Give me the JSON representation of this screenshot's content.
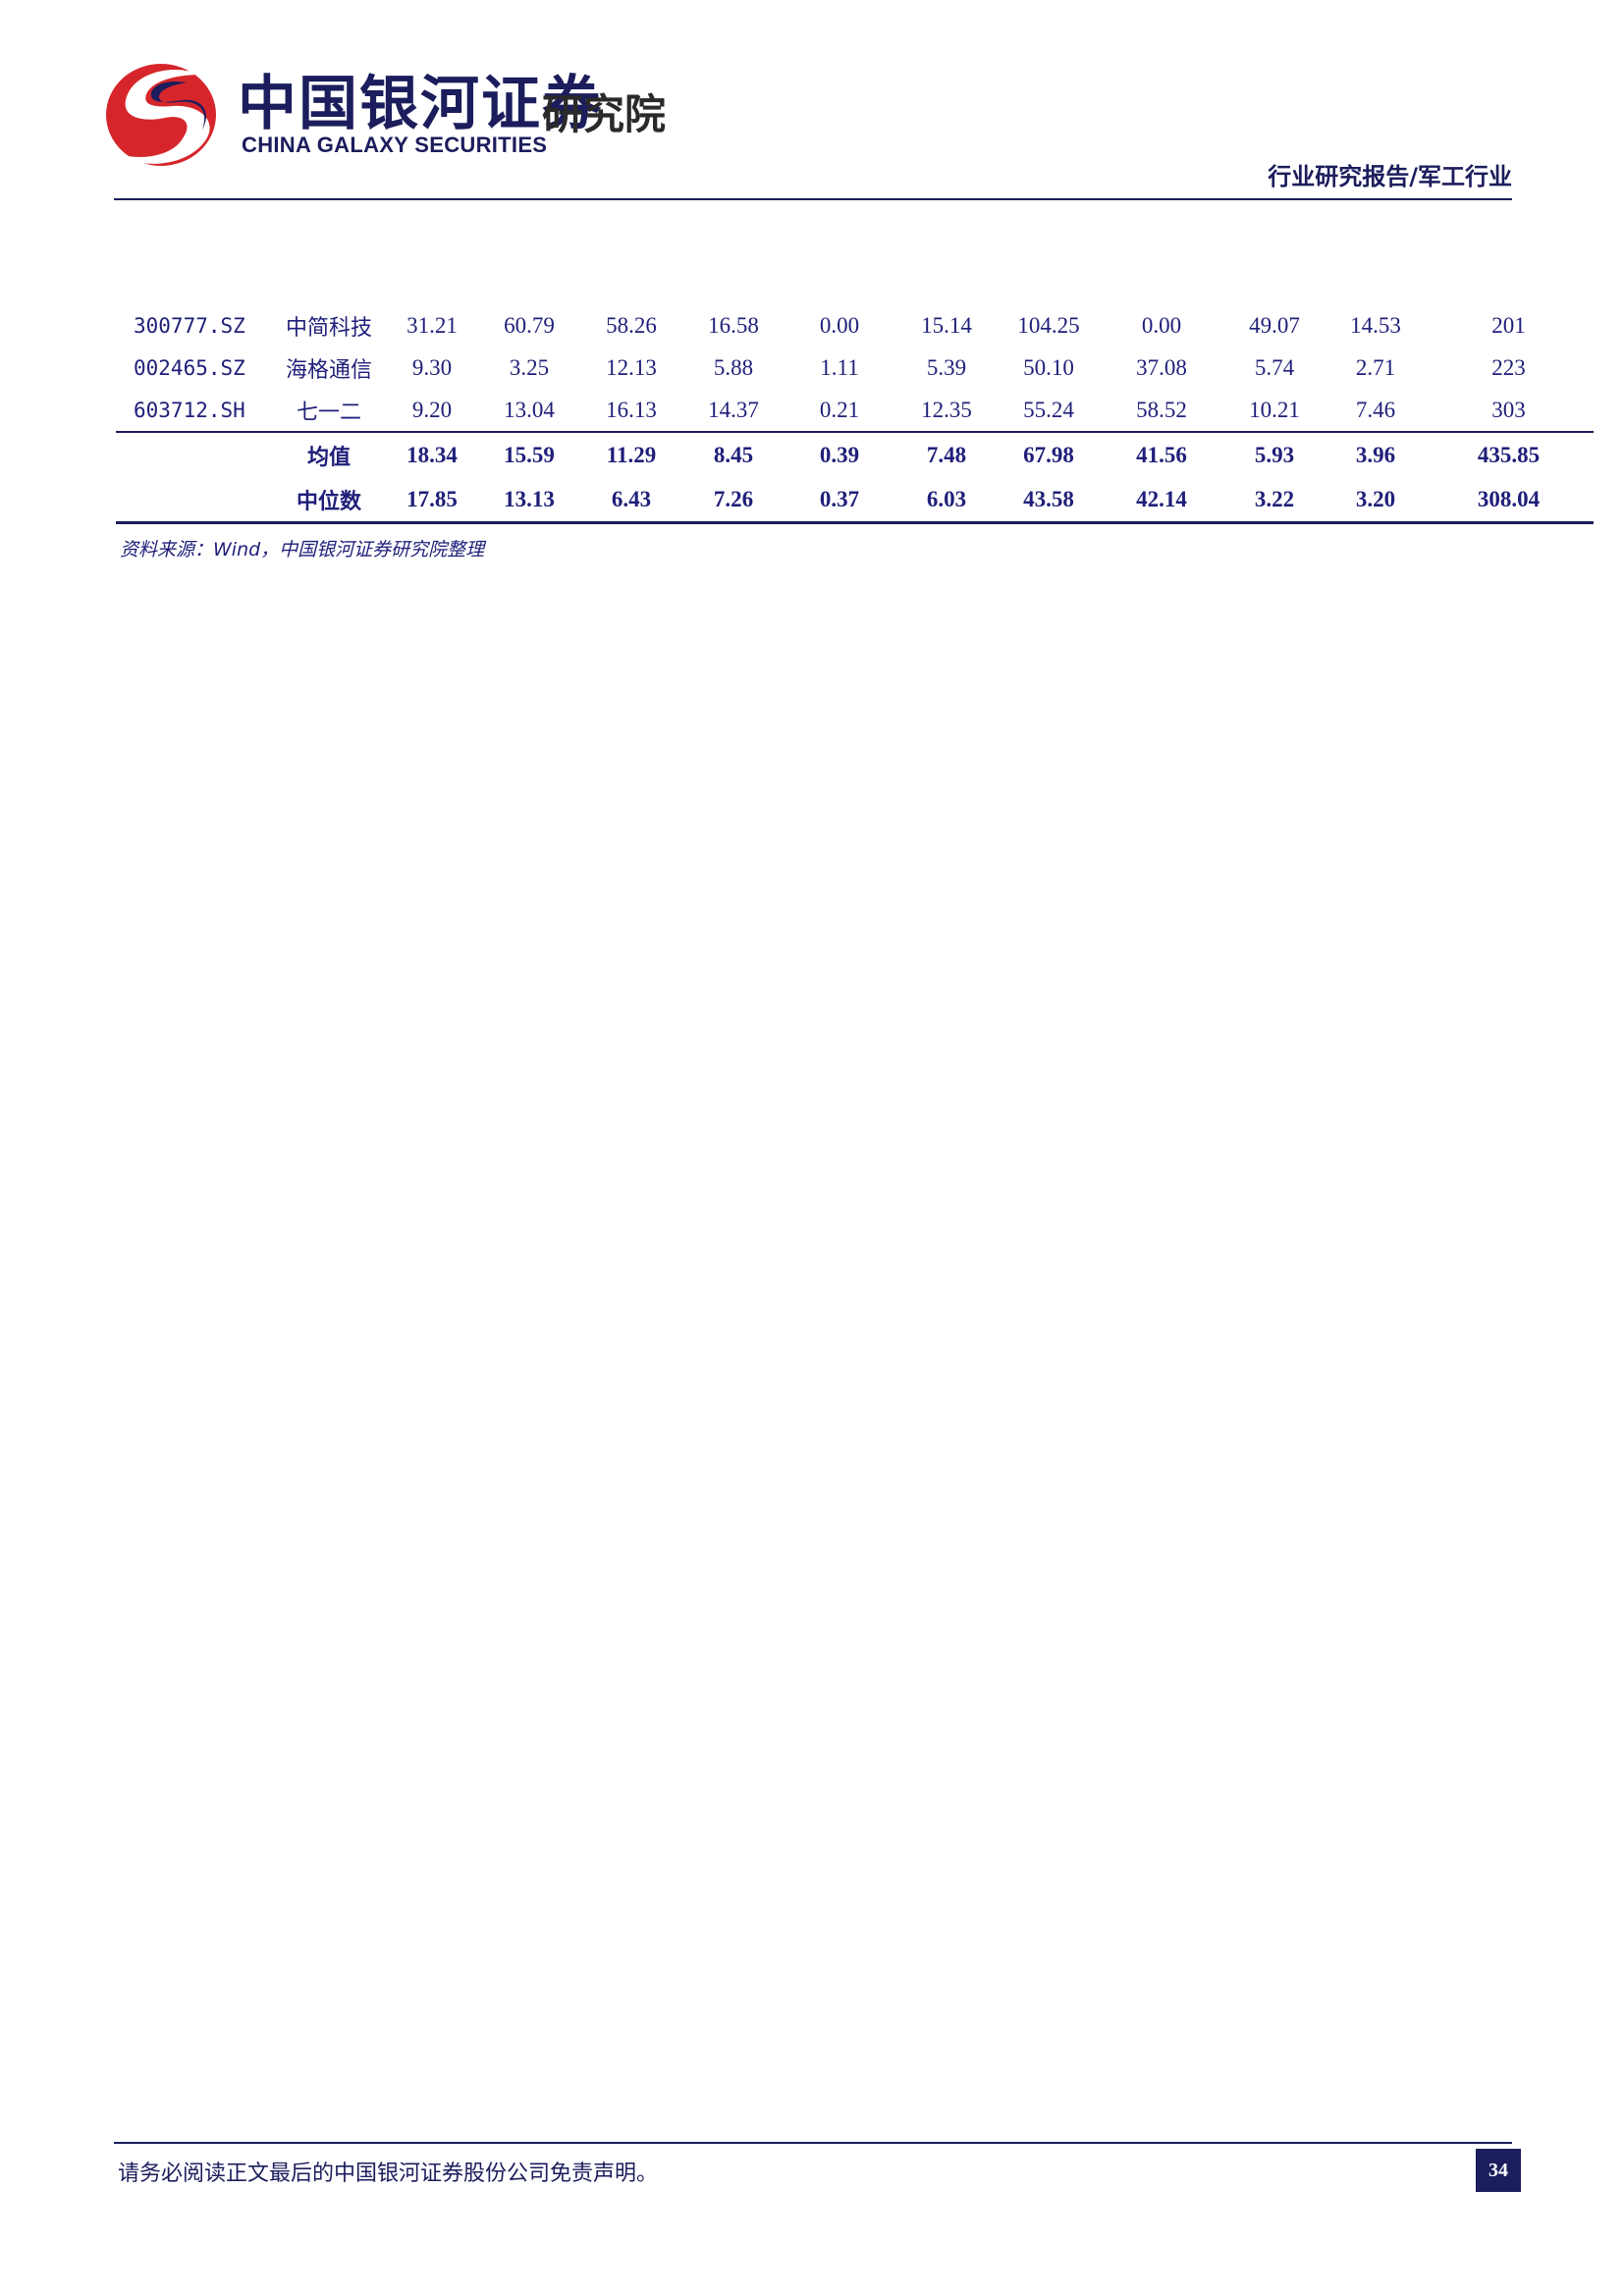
{
  "header": {
    "logo_cn": "中国银河证券",
    "logo_institute": "研究院",
    "logo_en": "CHINA GALAXY SECURITIES",
    "report_category": "行业研究报告/军工行业",
    "brand_colors": {
      "red": "#d6262b",
      "blue": "#1b1d5c"
    }
  },
  "table": {
    "rows": [
      {
        "code": "300777.SZ",
        "name": "中简科技",
        "values": [
          "31.21",
          "60.79",
          "58.26",
          "16.58",
          "0.00",
          "15.14",
          "104.25",
          "0.00",
          "49.07",
          "14.53",
          "201"
        ]
      },
      {
        "code": "002465.SZ",
        "name": "海格通信",
        "values": [
          "9.30",
          "3.25",
          "12.13",
          "5.88",
          "1.11",
          "5.39",
          "50.10",
          "37.08",
          "5.74",
          "2.71",
          "223"
        ]
      },
      {
        "code": "603712.SH",
        "name": "七一二",
        "values": [
          "9.20",
          "13.04",
          "16.13",
          "14.37",
          "0.21",
          "12.35",
          "55.24",
          "58.52",
          "10.21",
          "7.46",
          "303"
        ]
      }
    ],
    "stats": [
      {
        "name": "均值",
        "values": [
          "18.34",
          "15.59",
          "11.29",
          "8.45",
          "0.39",
          "7.48",
          "67.98",
          "41.56",
          "5.93",
          "3.96",
          "435.85"
        ]
      },
      {
        "name": "中位数",
        "values": [
          "17.85",
          "13.13",
          "6.43",
          "7.26",
          "0.37",
          "6.03",
          "43.58",
          "42.14",
          "3.22",
          "3.20",
          "308.04"
        ]
      }
    ]
  },
  "source_note": "资料来源：Wind，中国银河证券研究院整理",
  "footer": {
    "disclaimer": "请务必阅读正文最后的中国银河证券股份公司免责声明。",
    "page_number": "34"
  }
}
